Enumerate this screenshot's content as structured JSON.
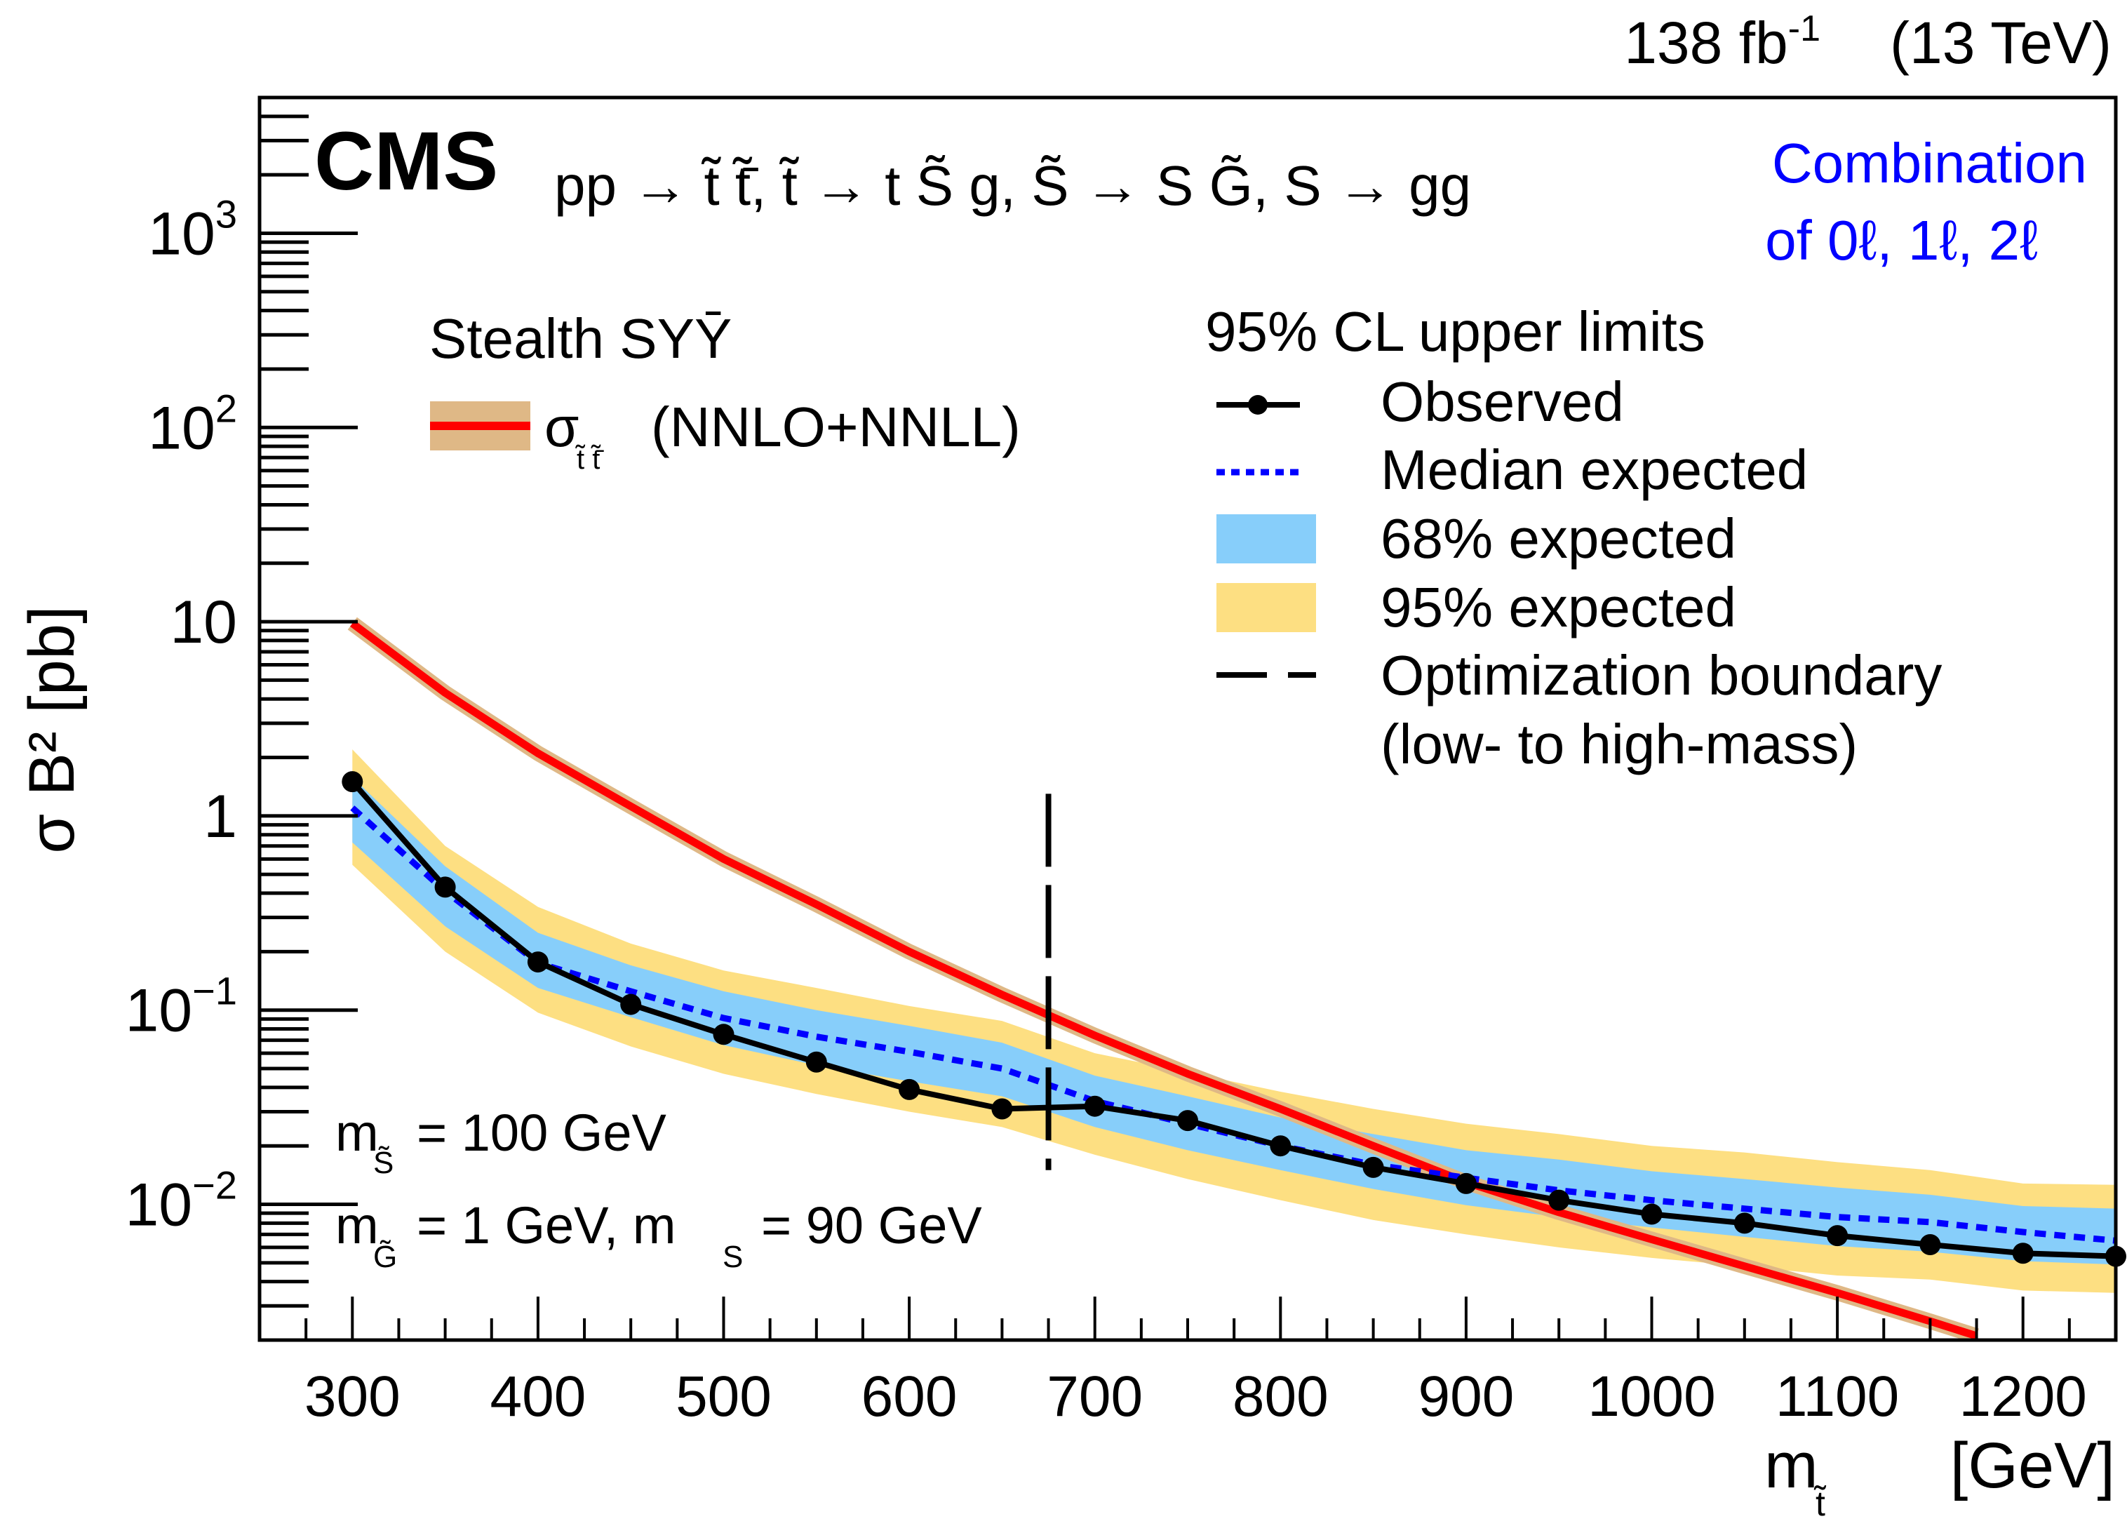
{
  "chart_data": {
    "type": "line",
    "experiment_label": "CMS",
    "lumi_label": "138 fb",
    "lumi_exponent": "-1",
    "energy_label": "(13 TeV)",
    "process_label": "pp → t̃ t̃̄, t̃ → t S̃ g, S̃ → S G̃, S → gg",
    "channel_label_line1": "Combination",
    "channel_label_line2": "of 0ℓ, 1ℓ, 2ℓ",
    "xlabel": "m",
    "xlabel_sub": "t̃",
    "xlabel_unit": "[GeV]",
    "ylabel": "σ B² [pb]",
    "xlim": [
      250,
      1250
    ],
    "ylim": [
      0.002,
      5000
    ],
    "yscale": "log",
    "x_ticks": [
      300,
      400,
      500,
      600,
      700,
      800,
      900,
      1000,
      1100,
      1200
    ],
    "x_tick_labels": [
      "300",
      "400",
      "500",
      "600",
      "700",
      "800",
      "900",
      "1000",
      "1100",
      "1200"
    ],
    "y_ticks": [
      0.01,
      0.1,
      1,
      10,
      100,
      1000
    ],
    "y_tick_labels": [
      {
        "base": "10",
        "exp": "−2"
      },
      {
        "base": "10",
        "exp": "−1"
      },
      {
        "base": "1",
        "exp": ""
      },
      {
        "base": "10",
        "exp": ""
      },
      {
        "base": "10",
        "exp": "2"
      },
      {
        "base": "10",
        "exp": "3"
      }
    ],
    "x": [
      300,
      350,
      400,
      450,
      500,
      550,
      600,
      650,
      700,
      750,
      800,
      850,
      900,
      950,
      1000,
      1050,
      1100,
      1150,
      1200,
      1250
    ],
    "series": [
      {
        "name": "Observed",
        "color": "#000000",
        "values": [
          1.5,
          0.43,
          0.177,
          0.107,
          0.075,
          0.054,
          0.039,
          0.031,
          0.032,
          0.027,
          0.02,
          0.0155,
          0.0128,
          0.0105,
          0.0089,
          0.008,
          0.0069,
          0.0062,
          0.0056,
          0.0054
        ]
      },
      {
        "name": "Median expected",
        "color": "#0000ff",
        "values": [
          1.1,
          0.41,
          0.175,
          0.125,
          0.091,
          0.073,
          0.061,
          0.05,
          0.034,
          0.026,
          0.02,
          0.016,
          0.0137,
          0.0118,
          0.0105,
          0.0095,
          0.0086,
          0.0081,
          0.0072,
          0.0065
        ]
      }
    ],
    "bands": [
      {
        "name": "95% expected",
        "color": "#fddf82",
        "upper": [
          2.2,
          0.7,
          0.34,
          0.22,
          0.16,
          0.13,
          0.105,
          0.088,
          0.06,
          0.048,
          0.038,
          0.031,
          0.026,
          0.023,
          0.02,
          0.0185,
          0.0165,
          0.015,
          0.0128,
          0.0126
        ],
        "lower": [
          0.56,
          0.2,
          0.097,
          0.065,
          0.047,
          0.037,
          0.03,
          0.025,
          0.018,
          0.0135,
          0.0105,
          0.0083,
          0.007,
          0.006,
          0.0053,
          0.0048,
          0.0043,
          0.0041,
          0.0036,
          0.0035
        ]
      },
      {
        "name": "68% expected",
        "color": "#87cefa",
        "upper": [
          1.58,
          0.55,
          0.25,
          0.17,
          0.125,
          0.1,
          0.083,
          0.068,
          0.046,
          0.036,
          0.028,
          0.023,
          0.019,
          0.017,
          0.0148,
          0.0135,
          0.0122,
          0.0112,
          0.0098,
          0.0095
        ],
        "lower": [
          0.73,
          0.27,
          0.13,
          0.092,
          0.066,
          0.052,
          0.043,
          0.036,
          0.025,
          0.019,
          0.015,
          0.012,
          0.0099,
          0.0086,
          0.0076,
          0.0068,
          0.0061,
          0.0057,
          0.0051,
          0.0049
        ]
      }
    ],
    "theory": {
      "name": "σ t̃t̃̄ (NNLO+NNLL)",
      "color": "#ff0000",
      "band_color": "#dfb886",
      "x": [
        300,
        350,
        400,
        450,
        500,
        550,
        600,
        650,
        700,
        750,
        800,
        850,
        900,
        950,
        1000,
        1050,
        1100,
        1150,
        1175
      ],
      "values": [
        9.8,
        4.3,
        2.1,
        1.12,
        0.6,
        0.35,
        0.2,
        0.12,
        0.074,
        0.047,
        0.031,
        0.02,
        0.013,
        0.0091,
        0.0066,
        0.0048,
        0.0035,
        0.0025,
        0.0021
      ]
    },
    "boundary": {
      "name": "Optimization boundary (low- to high-mass)",
      "x": 675,
      "y_range": [
        0.015,
        1.3
      ]
    },
    "annotations": {
      "line1_prefix": "m",
      "line1_sub": "S̃",
      "line1_value": "= 100 GeV",
      "line2_prefix": "m",
      "line2_sub": "G̃",
      "line2_mid": "= 1 GeV, m",
      "line2_sub2": "S",
      "line2_value": "= 90 GeV"
    },
    "legend_left": {
      "title": "Stealth SYȲ",
      "entry_label": "(NNLO+NNLL)",
      "entry_symbol": "σ",
      "entry_sub": "t̃ t̃̄"
    },
    "legend_right": {
      "title": "95% CL upper limits",
      "entries": [
        "Observed",
        "Median expected",
        "68% expected",
        "95% expected",
        "Optimization boundary",
        "(low- to high-mass)"
      ]
    },
    "legend_placement": "top-right",
    "grid": false
  }
}
